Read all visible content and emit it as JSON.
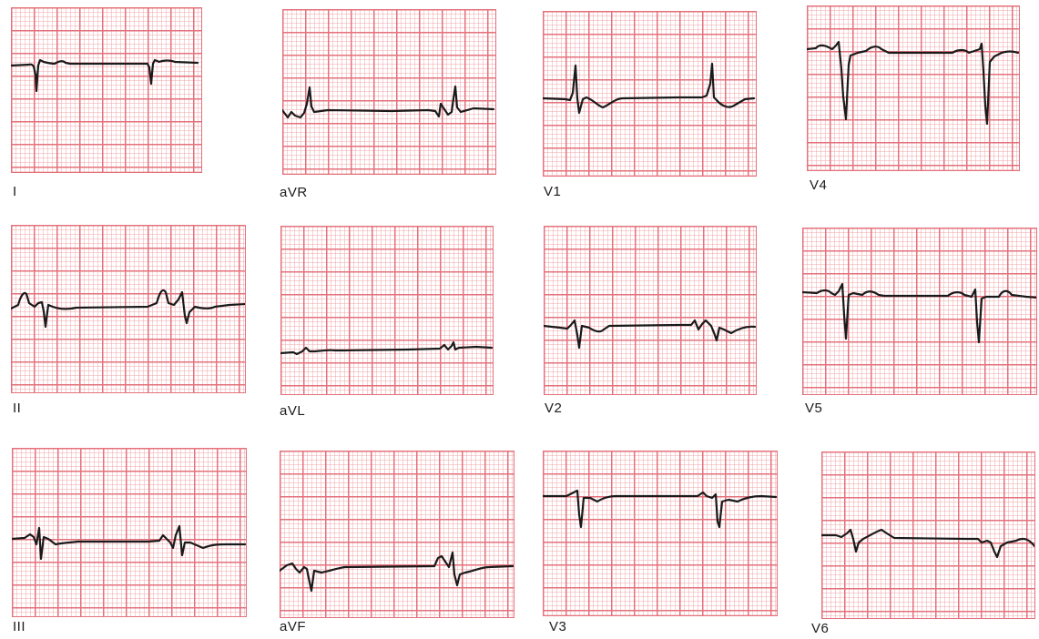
{
  "leads": [
    {
      "id": "I",
      "label": "I"
    },
    {
      "id": "aVR",
      "label": "aVR"
    },
    {
      "id": "V1",
      "label": "V1"
    },
    {
      "id": "V4",
      "label": "V4"
    },
    {
      "id": "II",
      "label": "II"
    },
    {
      "id": "aVL",
      "label": "aVL"
    },
    {
      "id": "V2",
      "label": "V2"
    },
    {
      "id": "V5",
      "label": "V5"
    },
    {
      "id": "III",
      "label": "III"
    },
    {
      "id": "aVF",
      "label": "aVF"
    },
    {
      "id": "V3",
      "label": "V3"
    },
    {
      "id": "V6",
      "label": "V6"
    }
  ],
  "colors": {
    "grid_major": "#e4717b",
    "grid_minor": "#f1a4aa",
    "trace": "#1a1a1a",
    "label": "#1c1c1c"
  }
}
